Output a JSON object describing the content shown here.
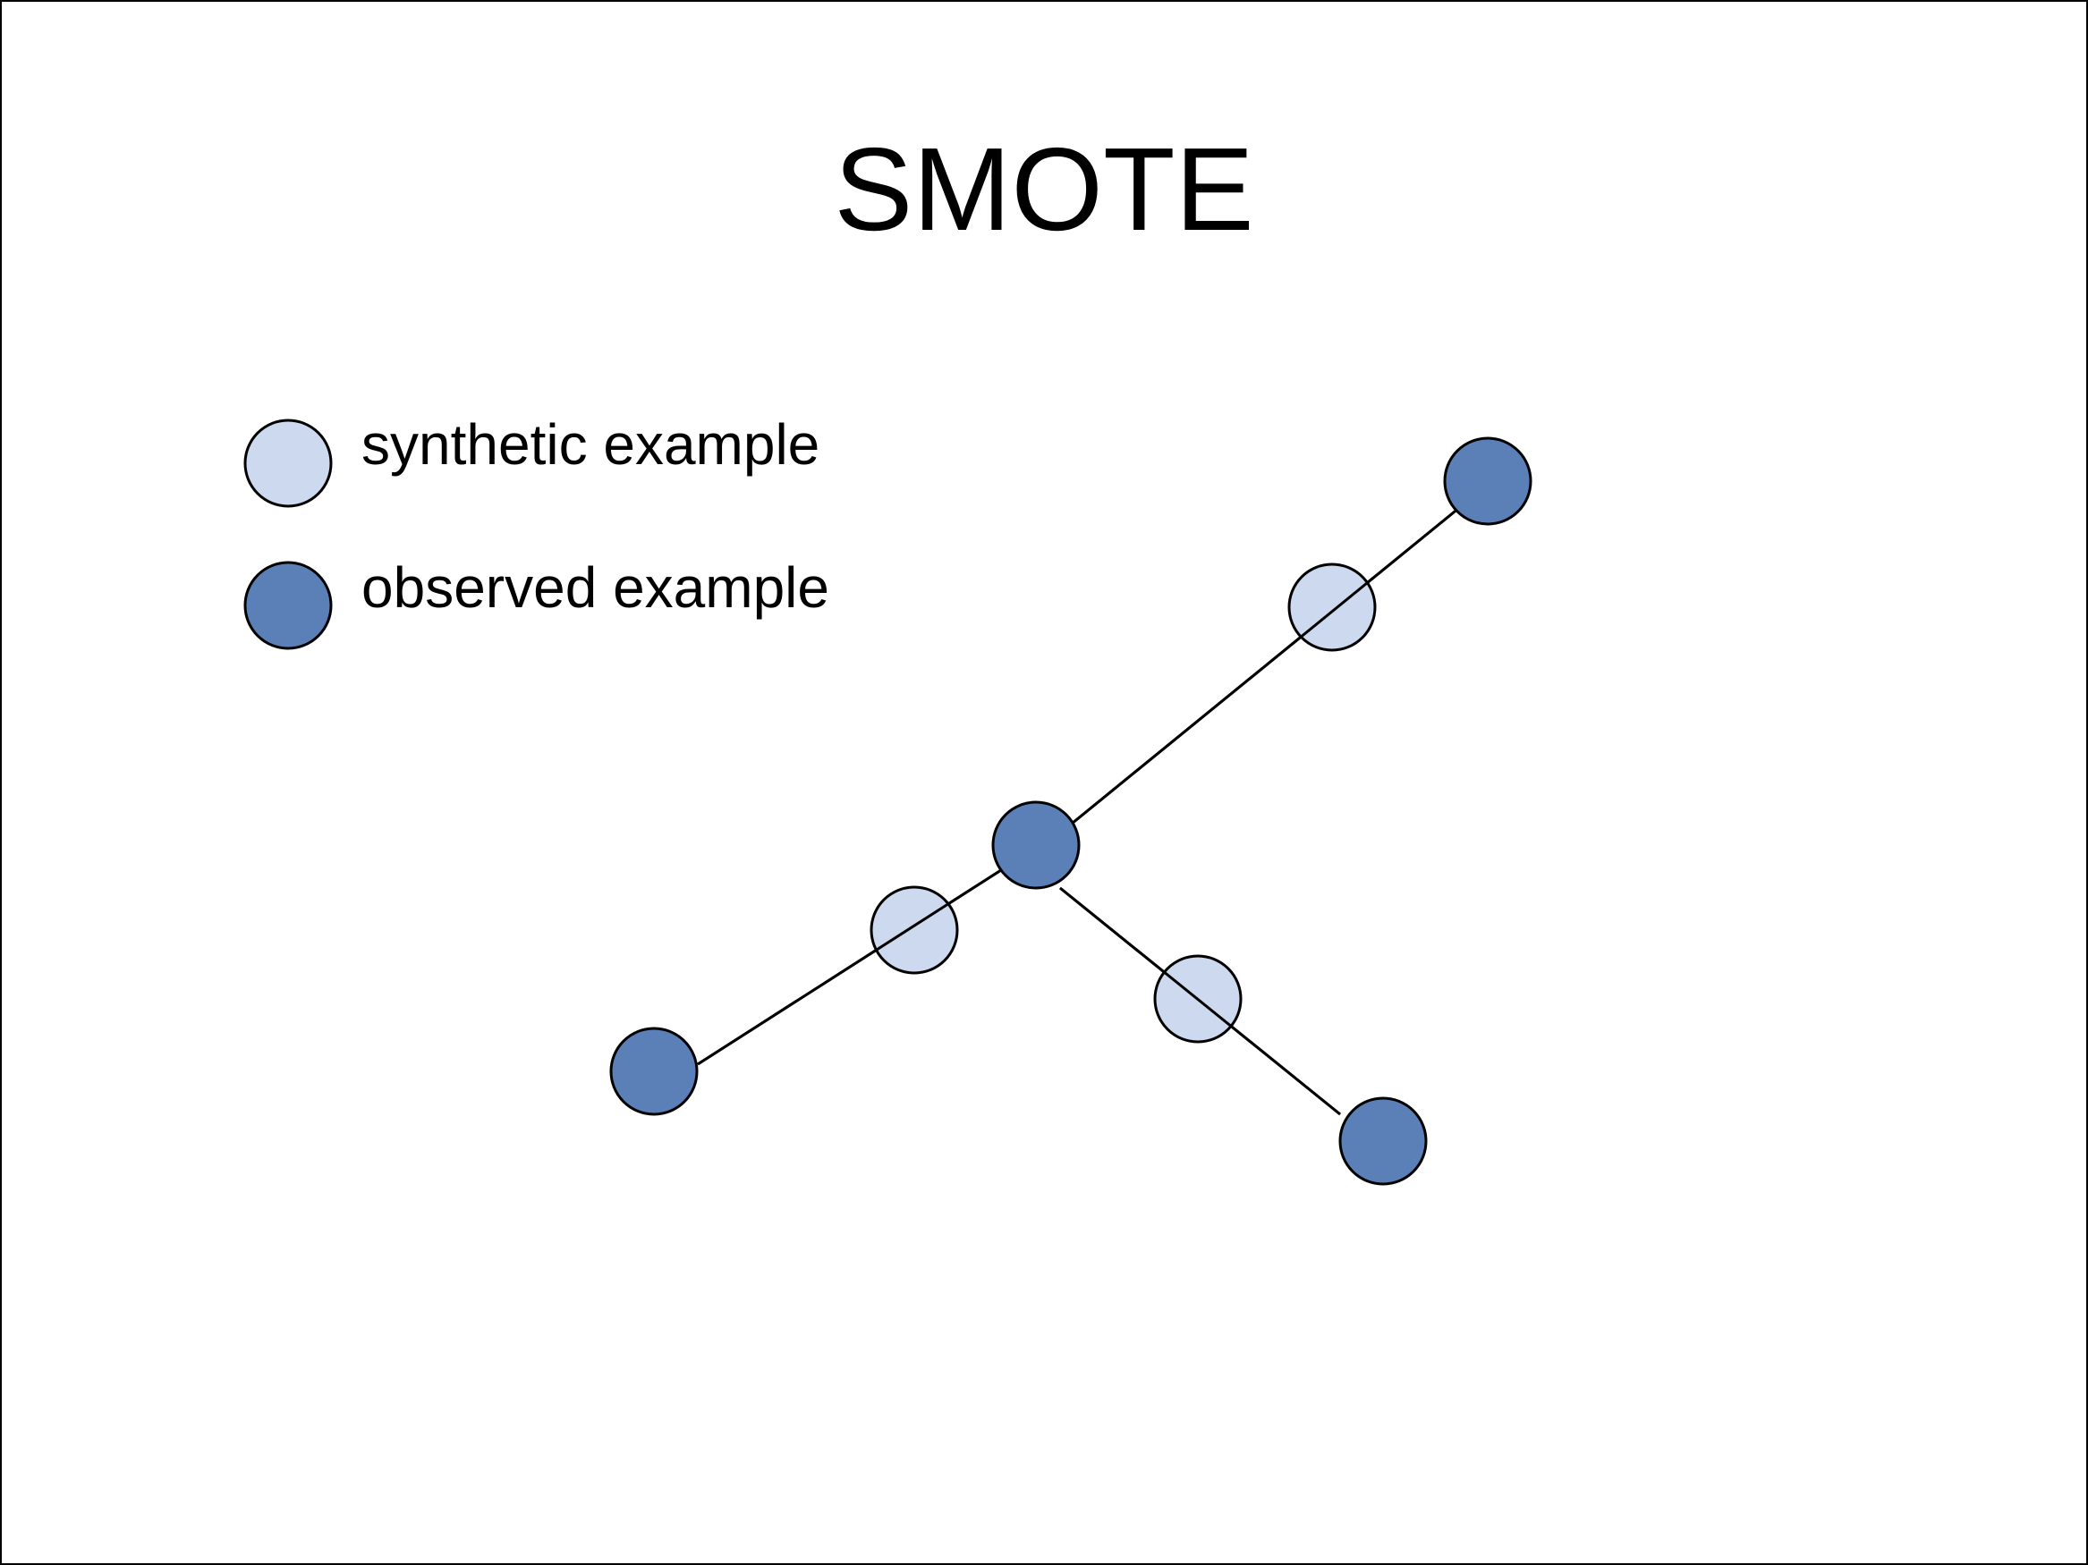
{
  "title": "SMOTE",
  "legend": {
    "synthetic_label": "synthetic example",
    "observed_label": "observed example"
  },
  "colors": {
    "synthetic_fill": "#ccd9ee",
    "observed_fill": "#5b80b8",
    "stroke": "#000000",
    "background": "#ffffff"
  }
}
